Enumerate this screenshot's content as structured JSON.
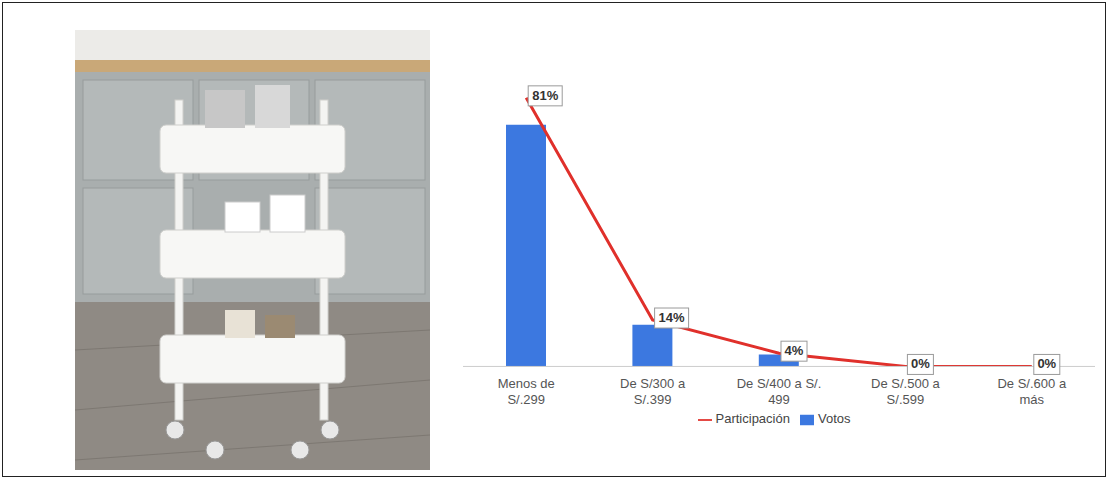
{
  "chart_data": {
    "type": "bar",
    "categories": [
      "Menos de S/.299",
      "De S/300 a S/.399",
      "De S/400 a S/. 499",
      "De S/.500 a S/.599",
      "De S/.600 a más"
    ],
    "series": [
      {
        "name": "Votos",
        "type": "bar",
        "color": "#3c78e0",
        "values": [
          81,
          14,
          4,
          0,
          0
        ]
      },
      {
        "name": "Participación",
        "type": "line",
        "color": "#e0302b",
        "axis": "y2",
        "values": [
          81,
          14,
          4,
          0,
          0
        ],
        "value_labels": [
          "81%",
          "14%",
          "4%",
          "0%",
          "0%"
        ]
      }
    ],
    "ylim": [
      0,
      100
    ],
    "y2lim": [
      0,
      90
    ],
    "grid": false,
    "legend": "bottom",
    "tick_labels": "x"
  }
}
